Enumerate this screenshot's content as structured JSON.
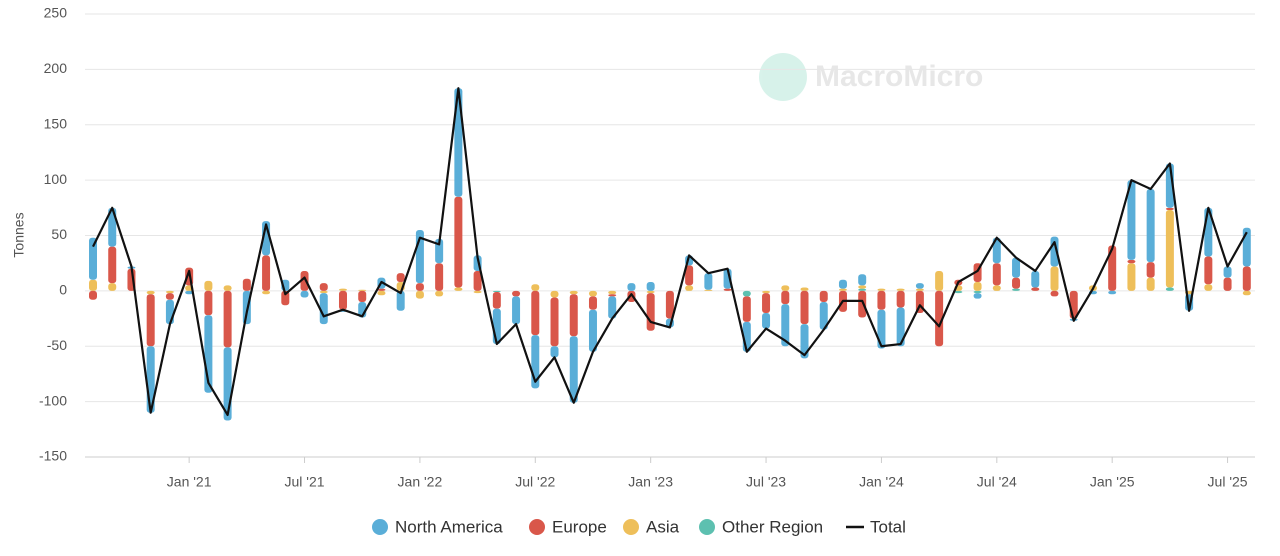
{
  "chart_data": {
    "type": "bar",
    "stacked": true,
    "watermark": "MacroMicro",
    "y_label": "Tonnes",
    "categories": [
      null,
      null,
      null,
      null,
      null,
      "Jan '21",
      null,
      null,
      null,
      null,
      null,
      "Jul '21",
      null,
      null,
      null,
      null,
      null,
      "Jan '22",
      null,
      null,
      null,
      null,
      null,
      "Jul '22",
      null,
      null,
      null,
      null,
      null,
      "Jan '23",
      null,
      null,
      null,
      null,
      null,
      "Jul '23",
      null,
      null,
      null,
      null,
      null,
      "Jan '24",
      null,
      null,
      null,
      null,
      null,
      "Jul '24",
      null,
      null,
      null,
      null,
      null,
      "Jan '25",
      null,
      null,
      null,
      null,
      null,
      "Jul '25",
      null
    ],
    "series": [
      {
        "name": "North America",
        "color": "#5aaed8",
        "values": [
          38,
          35,
          2,
          -60,
          -22,
          -3,
          -70,
          -66,
          -30,
          31,
          10,
          -6,
          -28,
          -2,
          -14,
          10,
          -18,
          48,
          22,
          98,
          14,
          -32,
          -25,
          -48,
          -10,
          -60,
          -38,
          -20,
          7,
          8,
          -8,
          9,
          15,
          18,
          -27,
          -14,
          -38,
          -31,
          -25,
          8,
          10,
          -35,
          -35,
          5,
          0,
          0,
          -5,
          23,
          18,
          15,
          27,
          -2,
          -3,
          -3,
          72,
          66,
          40,
          -15,
          44,
          10,
          35
        ]
      },
      {
        "name": "Europe",
        "color": "#d9574a",
        "values": [
          -8,
          33,
          20,
          -47,
          -6,
          16,
          -22,
          -51,
          11,
          32,
          -13,
          18,
          7,
          -17,
          -10,
          2,
          8,
          7,
          25,
          82,
          18,
          -15,
          -5,
          -40,
          -44,
          -38,
          -12,
          -2,
          -10,
          -34,
          -25,
          18,
          0,
          2,
          -23,
          -18,
          -12,
          -30,
          -10,
          -19,
          -24,
          -17,
          -15,
          -20,
          -50,
          5,
          17,
          20,
          10,
          3,
          -5,
          -25,
          0,
          41,
          3,
          14,
          2,
          0,
          25,
          12,
          22
        ]
      },
      {
        "name": "Asia",
        "color": "#eebf5a",
        "values": [
          10,
          7,
          0,
          -3,
          -2,
          5,
          9,
          5,
          0,
          -3,
          0,
          0,
          -2,
          2,
          1,
          -4,
          8,
          -7,
          -5,
          3,
          -2,
          0,
          0,
          6,
          -6,
          -3,
          -5,
          -3,
          0,
          -2,
          0,
          5,
          1,
          0,
          0,
          -2,
          5,
          3,
          0,
          2,
          3,
          2,
          2,
          2,
          18,
          5,
          8,
          5,
          0,
          0,
          22,
          0,
          5,
          0,
          25,
          12,
          70,
          -3,
          6,
          0,
          -4
        ]
      },
      {
        "name": "Other Region",
        "color": "#5dc0b0",
        "values": [
          0,
          0,
          0,
          0,
          0,
          0,
          0,
          0,
          0,
          0,
          0,
          0,
          0,
          0,
          0,
          0,
          0,
          0,
          0,
          0,
          0,
          -1,
          0,
          0,
          0,
          0,
          0,
          0,
          0,
          0,
          0,
          0,
          0,
          0,
          -5,
          0,
          0,
          0,
          0,
          0,
          2,
          0,
          0,
          0,
          0,
          -2,
          -2,
          0,
          2,
          0,
          0,
          0,
          0,
          0,
          0,
          0,
          3,
          0,
          0,
          0,
          0
        ]
      },
      {
        "name": "Total",
        "type": "line",
        "color": "#111111",
        "values": [
          40,
          75,
          22,
          -110,
          -30,
          18,
          -83,
          -112,
          -19,
          60,
          -3,
          12,
          -23,
          -17,
          -23,
          8,
          -2,
          48,
          42,
          183,
          30,
          -48,
          -30,
          -82,
          -60,
          -101,
          -55,
          -25,
          -3,
          -28,
          -33,
          32,
          16,
          20,
          -55,
          -34,
          -45,
          -58,
          -35,
          -9,
          -9,
          -50,
          -48,
          -13,
          -32,
          8,
          18,
          48,
          30,
          18,
          44,
          -27,
          2,
          38,
          100,
          92,
          115,
          -18,
          75,
          22,
          53
        ]
      }
    ],
    "ylim": [
      -150,
      250
    ],
    "yticks": [
      -150,
      -100,
      -50,
      0,
      50,
      100,
      150,
      200,
      250
    ],
    "grid": true,
    "legend": "bottom"
  }
}
